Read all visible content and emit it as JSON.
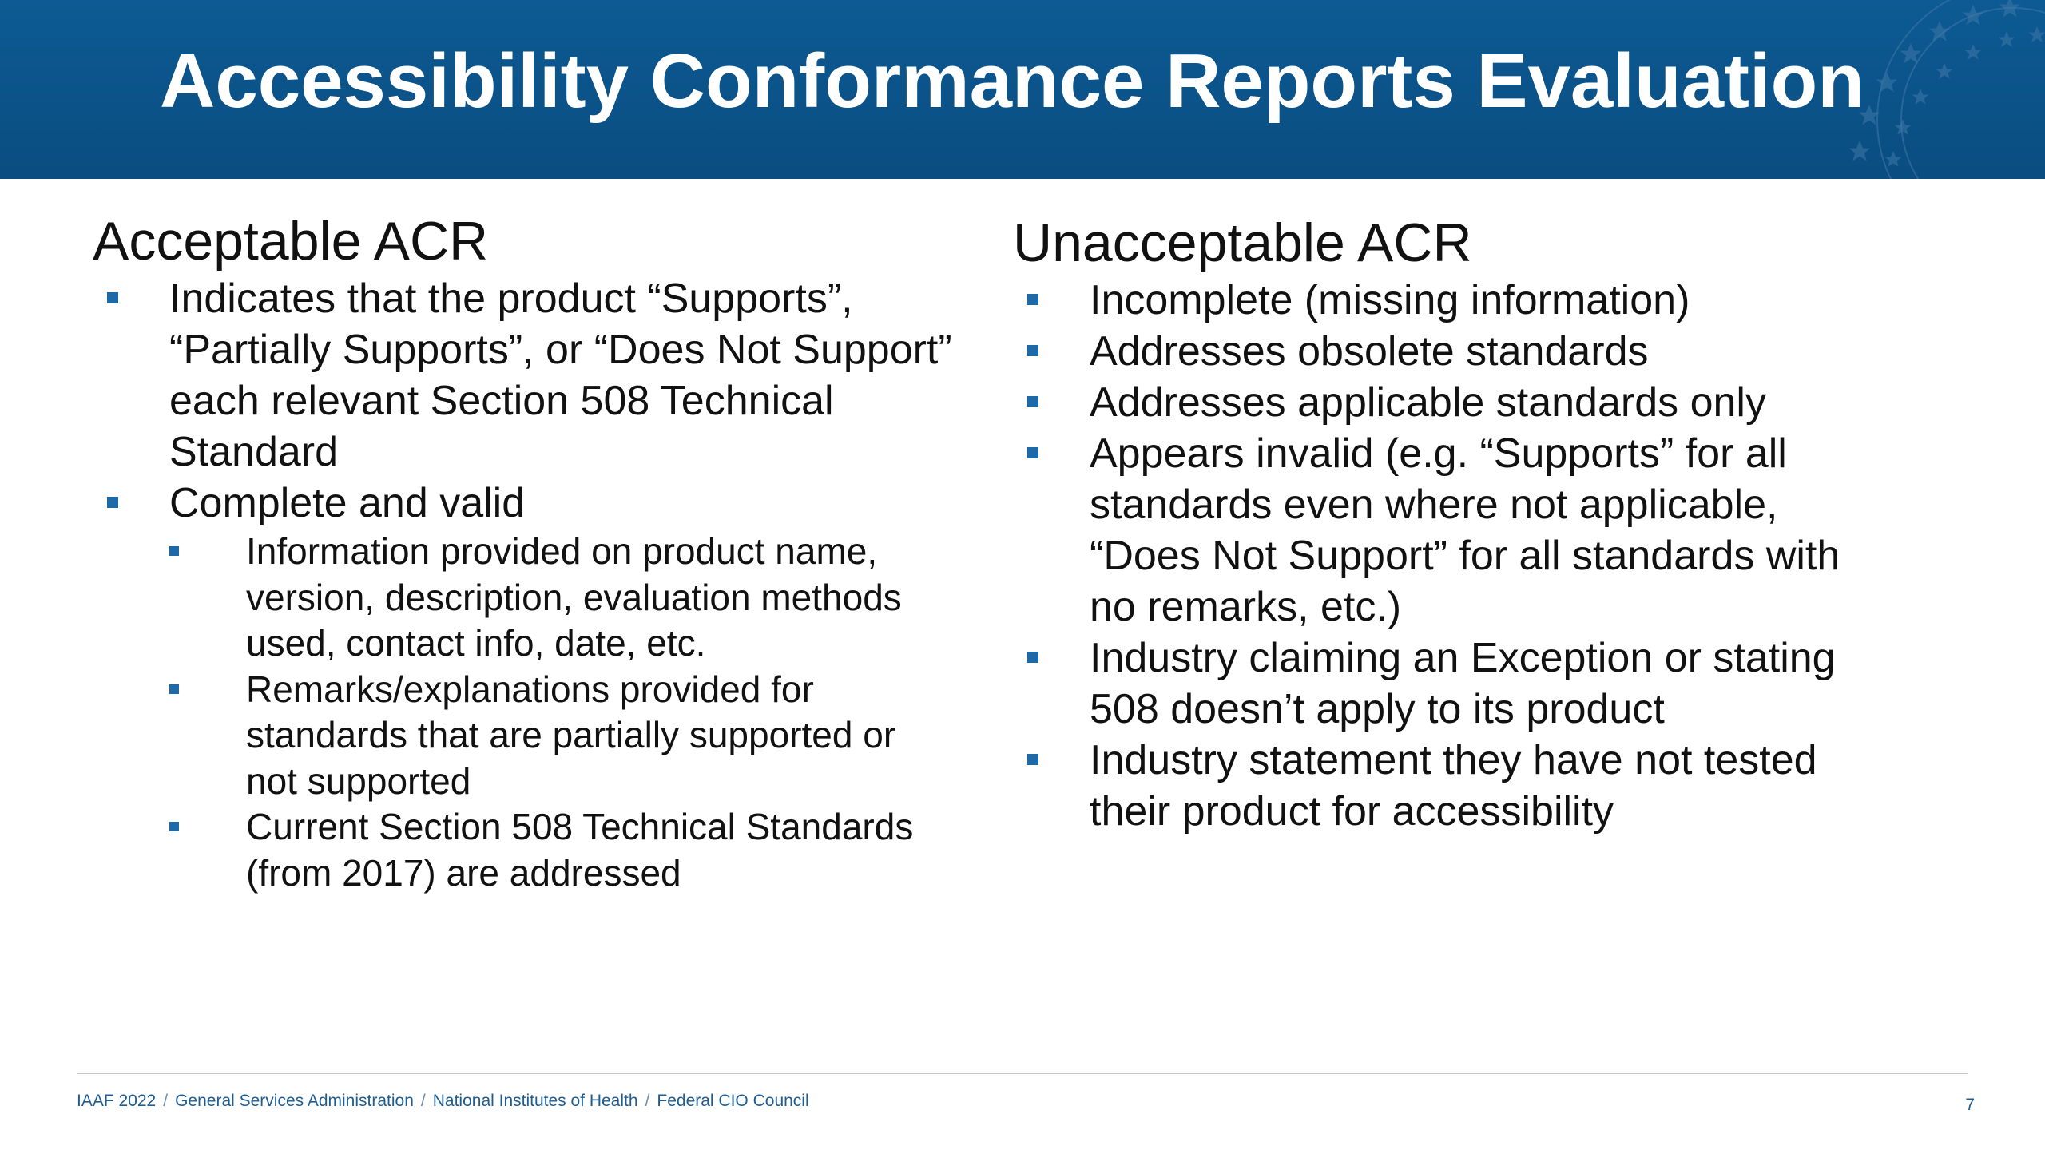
{
  "header": {
    "title": "Accessibility Conformance Reports Evaluation"
  },
  "left": {
    "heading": "Acceptable ACR",
    "items": [
      {
        "text": "Indicates that the product “Supports”, “Partially Supports”, or “Does Not Support” each relevant Section 508 Technical Standard"
      },
      {
        "text": "Complete and valid"
      }
    ],
    "subitems": [
      {
        "text": "Information provided on product name, version, description, evaluation methods used, contact info, date, etc."
      },
      {
        "text": "Remarks/explanations provided for standards that are partially supported or not supported"
      },
      {
        "text": "Current Section 508 Technical Standards (from 2017) are addressed"
      }
    ]
  },
  "right": {
    "heading": "Unacceptable ACR",
    "items": [
      {
        "text": "Incomplete (missing information)"
      },
      {
        "text": "Addresses obsolete standards"
      },
      {
        "text": "Addresses applicable standards only"
      },
      {
        "text": "Appears invalid (e.g. “Supports” for all standards even where not applicable, “Does Not Support” for all standards with no remarks, etc.)"
      },
      {
        "text": "Industry claiming an Exception or stating 508 doesn’t apply to its product"
      },
      {
        "text": "Industry statement they have not tested their product for accessibility"
      }
    ]
  },
  "footer": {
    "parts": [
      "IAAF 2022",
      "General Services Administration",
      "National Institutes of Health",
      "Federal CIO Council"
    ],
    "separator": "/",
    "page_number": "7"
  },
  "colors": {
    "header_blue": "#0b5389",
    "bullet_blue": "#1e6aa8",
    "footer_text": "#1e5d93"
  },
  "icons": {
    "header_decoration": "stars-seal-icon",
    "bullet": "square-bullet-icon"
  }
}
